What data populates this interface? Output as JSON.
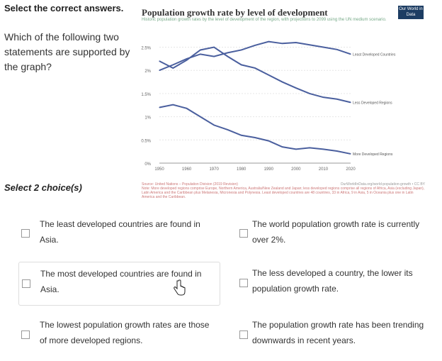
{
  "prompt": {
    "title": "Select the correct answers.",
    "question": "Which of the following two statements are supported by the graph?",
    "select_label": "Select 2 choice(s)"
  },
  "chart_header": {
    "title": "Population growth rate by level of development",
    "subtitle": "Historic population growth rates by the level of development of the region, with projections to 2099 using the UN medium scenario.",
    "logo": "Our World in Data"
  },
  "chart_data": {
    "type": "line",
    "title": "Population growth rate by level of development",
    "x": [
      1950,
      1955,
      1960,
      1965,
      1970,
      1975,
      1980,
      1985,
      1990,
      1995,
      2000,
      2005,
      2010,
      2015,
      2020
    ],
    "series": [
      {
        "name": "Least Developed Countries",
        "values": [
          2.0,
          2.12,
          2.25,
          2.35,
          2.3,
          2.38,
          2.44,
          2.54,
          2.62,
          2.58,
          2.6,
          2.55,
          2.5,
          2.45,
          2.35
        ]
      },
      {
        "name": "Less Developed Regions",
        "values": [
          2.2,
          2.05,
          2.22,
          2.44,
          2.5,
          2.3,
          2.12,
          2.05,
          1.9,
          1.75,
          1.62,
          1.5,
          1.42,
          1.38,
          1.31
        ]
      },
      {
        "name": "More Developed Regions",
        "values": [
          1.2,
          1.26,
          1.18,
          1.0,
          0.82,
          0.72,
          0.6,
          0.55,
          0.48,
          0.35,
          0.3,
          0.33,
          0.3,
          0.26,
          0.2
        ]
      }
    ],
    "x_ticks": [
      "1950",
      "1960",
      "1970",
      "1980",
      "1990",
      "2000",
      "2010",
      "2020"
    ],
    "y_ticks": [
      "0%",
      "0.5%",
      "1%",
      "1.5%",
      "2%",
      "2.5%"
    ],
    "ylim": [
      0,
      2.6
    ],
    "xlim": [
      1950,
      2020
    ],
    "colors": [
      "#4a5f9e",
      "#4a5f9e",
      "#4a5f9e"
    ]
  },
  "chart_note": {
    "source": "Source: United Nations – Population Division (2019 Revision)",
    "note": "Note: More developed regions comprise Europe, Northern America, Australia/New Zealand and Japan; less developed regions comprise all regions of Africa, Asia (excluding Japan), Latin America and the Caribbean plus Melanesia, Micronesia and Polynesia. Least developed countries are 48 countries, 33 in Africa, 9 in Asia, 5 in Oceania plus one in Latin America and the Caribbean.",
    "credit": "OurWorldInData.org/world-population-growth • CC BY"
  },
  "options": [
    {
      "text": "The least developed countries are found in Asia."
    },
    {
      "text": "The world population growth rate is currently over 2%."
    },
    {
      "text": "The most developed countries are found in Asia."
    },
    {
      "text": "The less developed a country, the lower its population growth rate."
    },
    {
      "text": "The lowest population growth rates are those of more developed regions."
    },
    {
      "text": "The population growth rate has been trending downwards in recent years."
    }
  ]
}
